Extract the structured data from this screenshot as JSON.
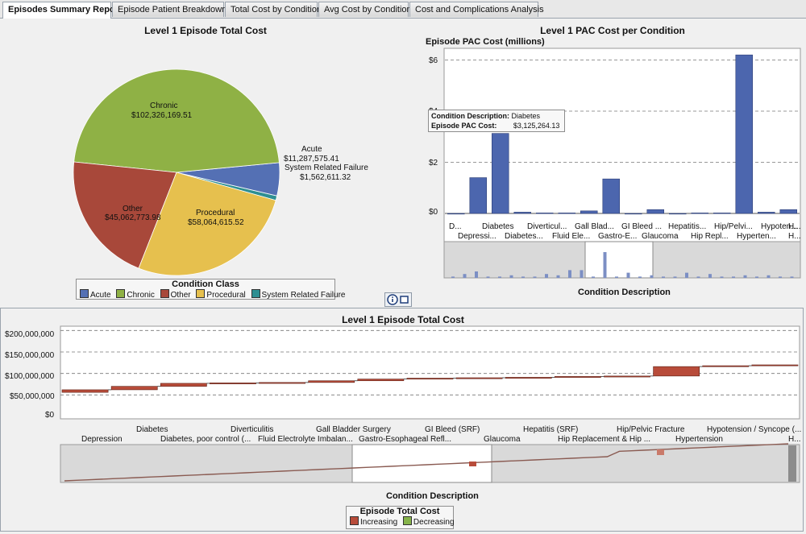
{
  "tabs": [
    {
      "label": "Episodes Summary Report",
      "active": true
    },
    {
      "label": "Episode Patient Breakdown",
      "active": false
    },
    {
      "label": "Total Cost by Condition",
      "active": false
    },
    {
      "label": "Avg Cost by Condition",
      "active": false
    },
    {
      "label": "Cost and Complications Analysis",
      "active": false
    }
  ],
  "colors": {
    "acute": "#5470b4",
    "chronic": "#8fb145",
    "other": "#a8483a",
    "procedural": "#e6c04e",
    "system": "#2e8f92",
    "bar": "#4c66ae",
    "increasing": "#b84c3a",
    "decreasing": "#86b44a"
  },
  "pie": {
    "title": "Level 1 Episode Total Cost",
    "legend_title": "Condition Class",
    "slices": [
      {
        "name": "Acute",
        "value": "$11,287,575.41",
        "amount": 11287575.41
      },
      {
        "name": "Chronic",
        "value": "$102,326,169.51",
        "amount": 102326169.51
      },
      {
        "name": "Other",
        "value": "$45,062,773.98",
        "amount": 45062773.98
      },
      {
        "name": "Procedural",
        "value": "$58,064,615.52",
        "amount": 58064615.52
      },
      {
        "name": "System Related Failure",
        "value": "$1,562,611.32",
        "amount": 1562611.32
      }
    ]
  },
  "pac": {
    "title": "Level 1 PAC Cost per Condition",
    "ylabel": "Episode PAC Cost (millions)",
    "xlabel": "Condition Description",
    "yticks": [
      "$6",
      "$4",
      "$2",
      "$0"
    ],
    "tooltip": {
      "label1": "Condition Description:",
      "value1": "Diabetes",
      "label2": "Episode PAC Cost:",
      "value2": "$3,125,264.13"
    },
    "xticks_top": [
      "D...",
      "Diabetes",
      "Diverticul...",
      "Gall Blad...",
      "GI Bleed ...",
      "Hepatitis...",
      "Hip/Pelvi...",
      "Hypoten...",
      "H..."
    ],
    "xticks_bottom": [
      "Depressi...",
      "Diabetes...",
      "Fluid Ele...",
      "Gastro-E...",
      "Glaucoma",
      "Hip Repl...",
      "Hyperten...",
      "H..."
    ]
  },
  "chart_data": [
    {
      "type": "pie",
      "title": "Level 1 Episode Total Cost",
      "categories": [
        "Acute",
        "Chronic",
        "Other",
        "Procedural",
        "System Related Failure"
      ],
      "values": [
        11287575.41,
        102326169.51,
        45062773.98,
        58064615.52,
        1562611.32
      ],
      "legend": "bottom"
    },
    {
      "type": "bar",
      "title": "Level 1 PAC Cost per Condition",
      "ylabel": "Episode PAC Cost (millions)",
      "xlabel": "Condition Description",
      "ylim": [
        0,
        6.3
      ],
      "categories": [
        "D...",
        "Depressi...",
        "Diabetes",
        "Diabetes...",
        "Diverticul...",
        "Fluid Ele...",
        "Gall Blad...",
        "Gastro-E...",
        "GI Bleed ...",
        "Glaucoma",
        "Hepatitis...",
        "Hip Repl...",
        "Hip/Pelvi...",
        "Hyperten...",
        "Hypoten...",
        "H..."
      ],
      "values": [
        0.0,
        1.4,
        3.13,
        0.05,
        0.02,
        0.02,
        0.1,
        1.35,
        0.0,
        0.15,
        0.0,
        0.02,
        0.02,
        6.2,
        0.05,
        0.15
      ]
    },
    {
      "type": "bar",
      "title": "Level 1 Episode Total Cost",
      "xlabel": "Condition Description",
      "ylim": [
        0,
        210000000
      ],
      "legend_title": "Episode Total Cost",
      "legend": [
        "Increasing",
        "Decreasing"
      ],
      "categories": [
        "Depression",
        "Diabetes",
        "Diabetes, poor control (...",
        "Diverticulitis",
        "Fluid Electrolyte Imbalan...",
        "Gall Bladder Surgery",
        "Gastro-Esophageal Refl...",
        "GI Bleed (SRF)",
        "Glaucoma",
        "Hepatitis (SRF)",
        "Hip Replacement & Hip ...",
        "Hip/Pelvic Fracture",
        "Hypertension",
        "Hypotension / Syncope (...",
        "H..."
      ],
      "start": [
        56000000,
        62000000,
        70000000,
        77000000,
        78000000,
        79000000,
        83000000,
        87000000,
        89000000,
        90000000,
        91000000,
        93000000,
        94000000,
        116000000,
        118000000
      ],
      "end": [
        62000000,
        70000000,
        77000000,
        78000000,
        79000000,
        83000000,
        87000000,
        89000000,
        90000000,
        91000000,
        93000000,
        94000000,
        116000000,
        118000000,
        120000000
      ]
    }
  ],
  "waterfall": {
    "title": "Level 1 Episode Total Cost",
    "xlabel": "Condition Description",
    "yticks": [
      "$200,000,000",
      "$150,000,000",
      "$100,000,000",
      "$50,000,000",
      "$0"
    ],
    "xticks_top": [
      "Diabetes",
      "Diverticulitis",
      "Gall Bladder Surgery",
      "GI Bleed (SRF)",
      "Hepatitis (SRF)",
      "Hip/Pelvic Fracture",
      "Hypotension / Syncope (..."
    ],
    "xticks_bottom": [
      "Depression",
      "Diabetes, poor control (...",
      "Fluid Electrolyte Imbalan...",
      "Gastro-Esophageal Refl...",
      "Glaucoma",
      "Hip Replacement & Hip ...",
      "Hypertension",
      "H..."
    ],
    "legend_title": "Episode Total Cost",
    "legend_items": [
      "Increasing",
      "Decreasing"
    ]
  }
}
